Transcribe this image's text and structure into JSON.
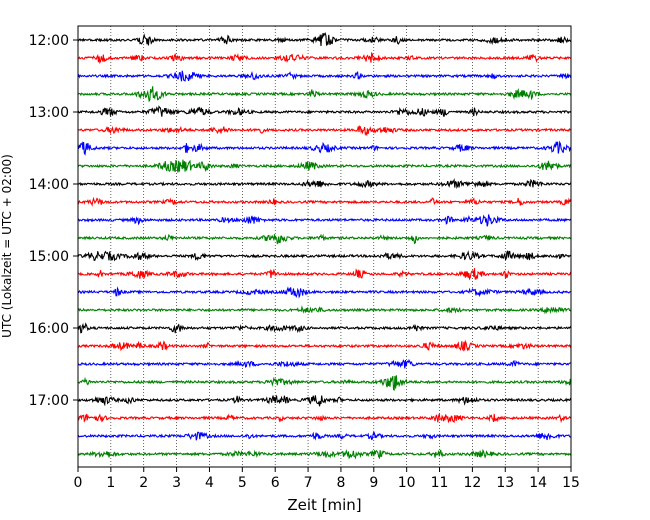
{
  "chart_data": {
    "type": "line",
    "title": "",
    "xlabel": "Zeit  [min]",
    "ylabel": "UTC (Lokalzeit = UTC + 02:00)",
    "xlim": [
      0,
      15
    ],
    "x_ticks": [
      "0",
      "1",
      "2",
      "3",
      "4",
      "5",
      "6",
      "7",
      "8",
      "9",
      "10",
      "11",
      "12",
      "13",
      "14",
      "15"
    ],
    "y_ticks": [
      "12:00",
      "13:00",
      "14:00",
      "15:00",
      "16:00",
      "17:00"
    ],
    "grid": "vertical dotted lines at each minute",
    "trace_colors": [
      "#000000",
      "#ff0000",
      "#0000ff",
      "#008000"
    ],
    "traces": [
      {
        "start": "12:00",
        "color": "#000000"
      },
      {
        "start": "12:15",
        "color": "#ff0000"
      },
      {
        "start": "12:30",
        "color": "#0000ff"
      },
      {
        "start": "12:45",
        "color": "#008000"
      },
      {
        "start": "13:00",
        "color": "#000000"
      },
      {
        "start": "13:15",
        "color": "#ff0000"
      },
      {
        "start": "13:30",
        "color": "#0000ff"
      },
      {
        "start": "13:45",
        "color": "#008000"
      },
      {
        "start": "14:00",
        "color": "#000000"
      },
      {
        "start": "14:15",
        "color": "#ff0000"
      },
      {
        "start": "14:30",
        "color": "#0000ff"
      },
      {
        "start": "14:45",
        "color": "#008000"
      },
      {
        "start": "15:00",
        "color": "#000000"
      },
      {
        "start": "15:15",
        "color": "#ff0000"
      },
      {
        "start": "15:30",
        "color": "#0000ff"
      },
      {
        "start": "15:45",
        "color": "#008000"
      },
      {
        "start": "16:00",
        "color": "#000000"
      },
      {
        "start": "16:15",
        "color": "#ff0000"
      },
      {
        "start": "16:30",
        "color": "#0000ff"
      },
      {
        "start": "16:45",
        "color": "#008000"
      },
      {
        "start": "17:00",
        "color": "#000000"
      },
      {
        "start": "17:15",
        "color": "#ff0000"
      },
      {
        "start": "17:30",
        "color": "#0000ff"
      },
      {
        "start": "17:45",
        "color": "#008000"
      }
    ]
  }
}
